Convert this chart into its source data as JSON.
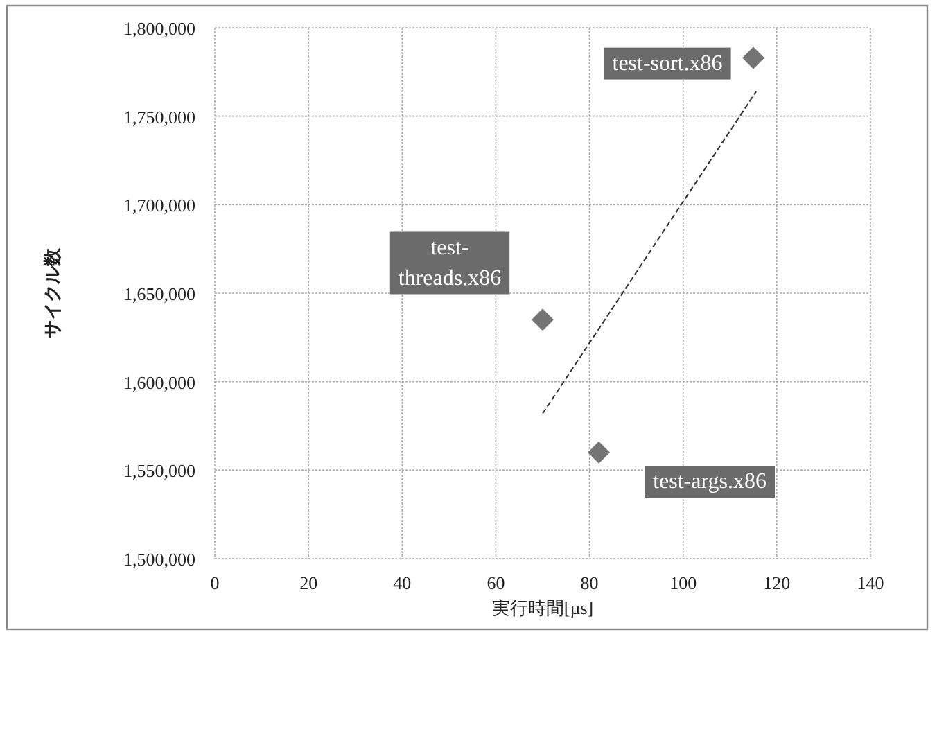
{
  "chart_data": {
    "type": "scatter",
    "xlabel": "実行時間[µs]",
    "ylabel": "サイクル数",
    "xlim": [
      0,
      140
    ],
    "xticks": [
      0,
      20,
      40,
      60,
      80,
      100,
      120,
      140
    ],
    "ylim": [
      1500000,
      1800000
    ],
    "yticks": [
      {
        "value": 1500000,
        "label": "1,500,000"
      },
      {
        "value": 1550000,
        "label": "1,550,000"
      },
      {
        "value": 1600000,
        "label": "1,600,000"
      },
      {
        "value": 1650000,
        "label": "1,650,000"
      },
      {
        "value": 1700000,
        "label": "1,700,000"
      },
      {
        "value": 1750000,
        "label": "1,750,000"
      },
      {
        "value": 1800000,
        "label": "1,800,000"
      }
    ],
    "grid": true,
    "marker": "diamond",
    "series": [
      {
        "color": "#747474",
        "x": [
          115,
          70,
          82
        ],
        "values": [
          1783000,
          1635000,
          1560000
        ]
      },
      {
        "type": "line",
        "marker": "none",
        "line_style": "dashed",
        "color": "#333333",
        "x": [
          70,
          115.6
        ],
        "values": [
          1582000,
          1764000
        ]
      }
    ],
    "annotations": [
      {
        "text": "test-sort.x86",
        "x": 115,
        "y": 1783000
      },
      {
        "text": "test-threads.x86",
        "x": 70,
        "y": 1635000
      },
      {
        "text": "test-args.x86",
        "x": 82,
        "y": 1560000
      }
    ]
  }
}
